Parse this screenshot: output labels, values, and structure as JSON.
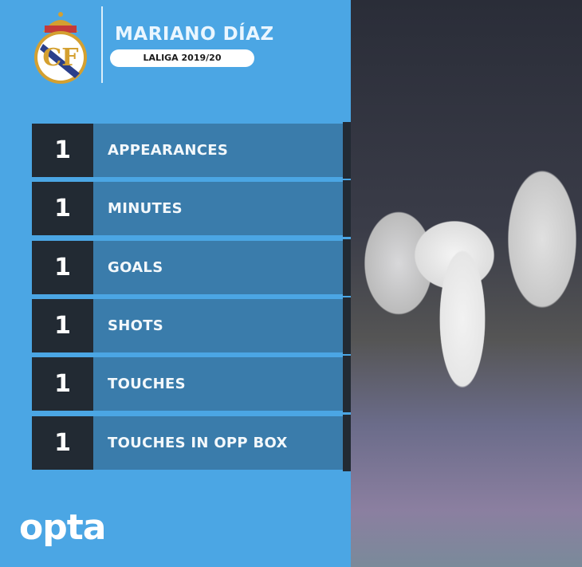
{
  "header": {
    "player_name": "MARIANO DÍAZ",
    "competition": "LALIGA 2019/20",
    "club_crest": "real-madrid-crest"
  },
  "stats": [
    {
      "value": "1",
      "label": "APPEARANCES"
    },
    {
      "value": "1",
      "label": "MINUTES"
    },
    {
      "value": "1",
      "label": "GOALS"
    },
    {
      "value": "1",
      "label": "SHOTS"
    },
    {
      "value": "1",
      "label": "TOUCHES"
    },
    {
      "value": "1",
      "label": "TOUCHES IN OPP BOX"
    }
  ],
  "footer": {
    "brand": "opta"
  },
  "colors": {
    "panel": "#4ba6e4",
    "number_box": "#222a33",
    "label_bar": "#3a7cab"
  }
}
